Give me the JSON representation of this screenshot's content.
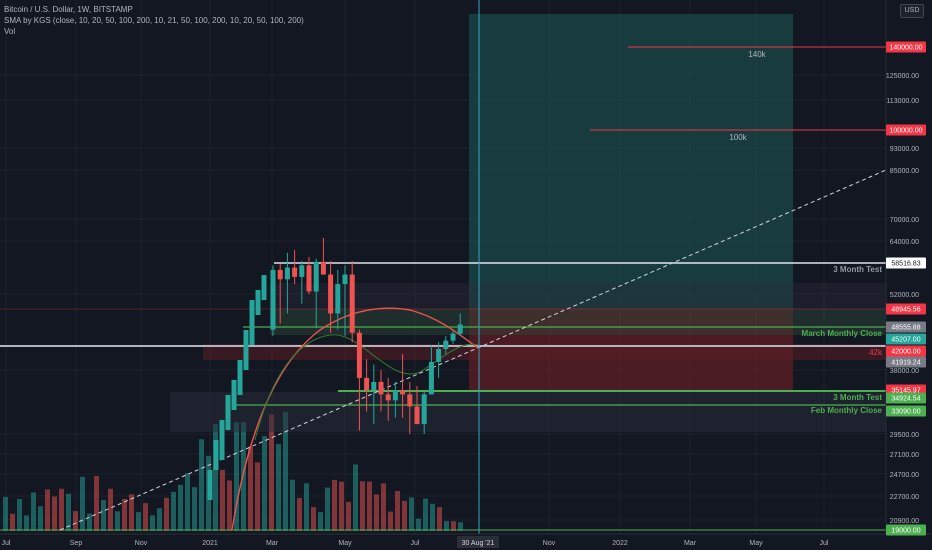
{
  "legend": {
    "title": "Bitcoin / U.S. Dollar, 1W, BITSTAMP",
    "indicator": "SMA by KGS (close, 10, 20, 50, 100, 200, 10, 21, 50, 100, 200, 10, 20, 50, 100, 200)",
    "vol": "Vol"
  },
  "currency": "USD",
  "y_ticks": [
    "125000.00",
    "113000.00",
    "93000.00",
    "85000.00",
    "70000.00",
    "64000.00",
    "52000.00",
    "38000.00",
    "29500.00",
    "27100.00",
    "24700.00",
    "22700.00",
    "20900.00"
  ],
  "x_ticks": [
    "Jul",
    "Sep",
    "Nov",
    "2021",
    "Mar",
    "May",
    "Jul",
    "Nov",
    "2022",
    "Mar",
    "May",
    "Jul"
  ],
  "crosshair_date": "30 Aug '21",
  "price_labels": [
    {
      "text": "140000.00",
      "color": "#f23645"
    },
    {
      "text": "100000.00",
      "color": "#f23645"
    },
    {
      "text": "58516.83",
      "color": "#ffffff"
    },
    {
      "text": "48945.56",
      "color": "#f23645"
    },
    {
      "text": "48555.88",
      "color": "#787b86"
    },
    {
      "text": "45207.00",
      "color": "#26a69a"
    },
    {
      "text": "42000.00",
      "color": "#f23645"
    },
    {
      "text": "41919.24",
      "color": "#787b86"
    },
    {
      "text": "35145.97",
      "color": "#f23645"
    },
    {
      "text": "34924.54",
      "color": "#4caf50"
    },
    {
      "text": "33090.00",
      "color": "#4caf50"
    },
    {
      "text": "19000.00",
      "color": "#4caf50"
    }
  ],
  "annotations": {
    "t140k": "140k",
    "t100k": "100k",
    "test3m_top": "3 Month Test",
    "march_close": "March Monthly Close",
    "t42k": "42k",
    "test3m_bottom": "3 Month Test",
    "feb_close": "Feb Monthly Close"
  },
  "colors": {
    "up": "#26a69a",
    "down": "#ef5350",
    "red_line": "#f23645",
    "green_line": "#4caf50",
    "background": "#131722"
  },
  "chart_data": {
    "type": "candlestick",
    "candles_ohlc": [
      [
        48000,
        58000,
        46000,
        57000
      ],
      [
        57000,
        58300,
        49000,
        55000
      ],
      [
        55000,
        61000,
        50000,
        57500
      ],
      [
        57500,
        61700,
        54000,
        55500
      ],
      [
        55500,
        59000,
        51000,
        58000
      ],
      [
        58000,
        60000,
        52000,
        52500
      ],
      [
        52500,
        59500,
        48500,
        58800
      ],
      [
        58800,
        64800,
        56000,
        56000
      ],
      [
        56000,
        59000,
        47000,
        50000
      ],
      [
        50000,
        57000,
        48000,
        54000
      ],
      [
        54000,
        58000,
        46000,
        56000
      ],
      [
        56000,
        59000,
        44000,
        47000
      ],
      [
        47000,
        48000,
        30000,
        37000
      ],
      [
        37000,
        40000,
        33000,
        35500
      ],
      [
        35500,
        39000,
        31000,
        36500
      ],
      [
        36500,
        38000,
        33000,
        35000
      ],
      [
        35000,
        37000,
        31500,
        34300
      ],
      [
        34300,
        36500,
        32000,
        35500
      ],
      [
        35500,
        41000,
        32000,
        35000
      ],
      [
        35000,
        36500,
        29500,
        33600
      ],
      [
        33600,
        36000,
        31000,
        31000
      ],
      [
        31000,
        35500,
        29500,
        35000
      ],
      [
        35000,
        43000,
        35000,
        39500
      ],
      [
        39500,
        44000,
        37000,
        42000
      ],
      [
        42000,
        46000,
        41000,
        44500
      ],
      [
        44500,
        47500,
        43500,
        46700
      ],
      [
        46700,
        50000,
        46000,
        48900
      ]
    ]
  }
}
